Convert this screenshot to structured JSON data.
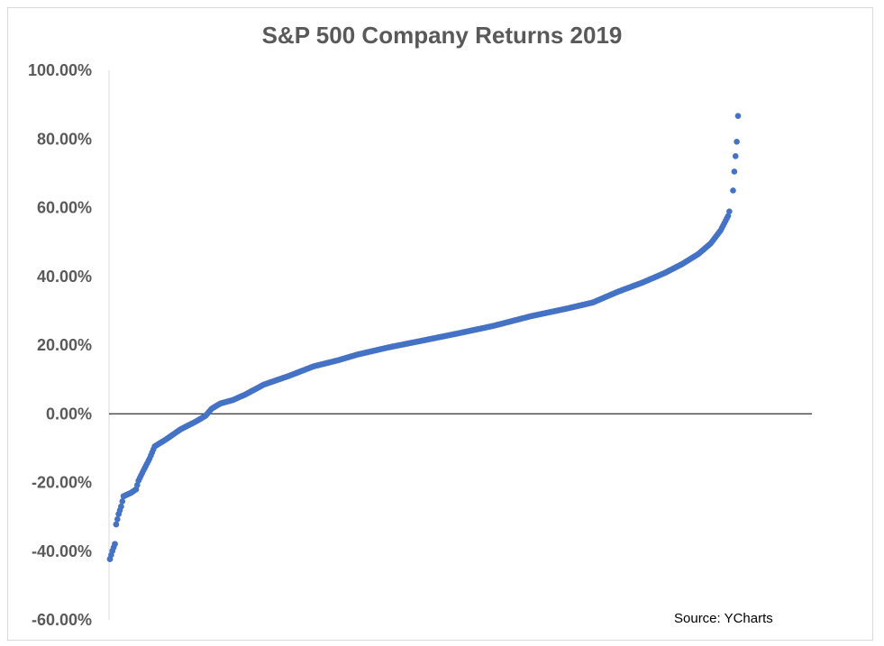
{
  "chart_data": {
    "type": "scatter",
    "title": "S&P 500 Company Returns 2019",
    "xlabel": "",
    "ylabel": "",
    "source": "Source: YCharts",
    "y_ticks": [
      "100.00%",
      "80.00%",
      "60.00%",
      "40.00%",
      "20.00%",
      "0.00%",
      "-20.00%",
      "-40.00%",
      "-60.00%"
    ],
    "ylim": [
      -60,
      100
    ],
    "xlim": [
      0,
      505
    ],
    "grid": false,
    "legend": "none",
    "marker_color": "#4472c4",
    "series": [
      {
        "anchors": [
          [
            1,
            -42.3
          ],
          [
            3,
            -39.9
          ],
          [
            5,
            -37.9
          ],
          [
            6,
            -32.2
          ],
          [
            8,
            -29.2
          ],
          [
            10,
            -27.0
          ],
          [
            12,
            -24.0
          ],
          [
            18,
            -23.0
          ],
          [
            22,
            -22.0
          ],
          [
            24,
            -19.5
          ],
          [
            28,
            -16.5
          ],
          [
            33,
            -13.0
          ],
          [
            37,
            -9.5
          ],
          [
            46,
            -7.5
          ],
          [
            58,
            -4.5
          ],
          [
            70,
            -2.3
          ],
          [
            78,
            -0.6
          ],
          [
            83,
            1.5
          ],
          [
            90,
            3.0
          ],
          [
            100,
            4.0
          ],
          [
            110,
            5.6
          ],
          [
            125,
            8.5
          ],
          [
            145,
            11.0
          ],
          [
            165,
            13.8
          ],
          [
            185,
            15.6
          ],
          [
            200,
            17.2
          ],
          [
            225,
            19.3
          ],
          [
            250,
            21.1
          ],
          [
            280,
            23.3
          ],
          [
            310,
            25.6
          ],
          [
            340,
            28.4
          ],
          [
            370,
            30.7
          ],
          [
            390,
            32.4
          ],
          [
            410,
            35.5
          ],
          [
            430,
            38.2
          ],
          [
            448,
            41.0
          ],
          [
            462,
            43.6
          ],
          [
            475,
            46.5
          ],
          [
            485,
            49.6
          ],
          [
            493,
            53.4
          ],
          [
            499,
            57.6
          ],
          [
            502,
            61.5
          ],
          [
            503,
            65.0
          ],
          [
            504,
            70.5
          ],
          [
            505,
            75.0
          ],
          [
            506,
            79.2
          ],
          [
            507,
            86.7
          ]
        ],
        "count": 505
      }
    ]
  }
}
